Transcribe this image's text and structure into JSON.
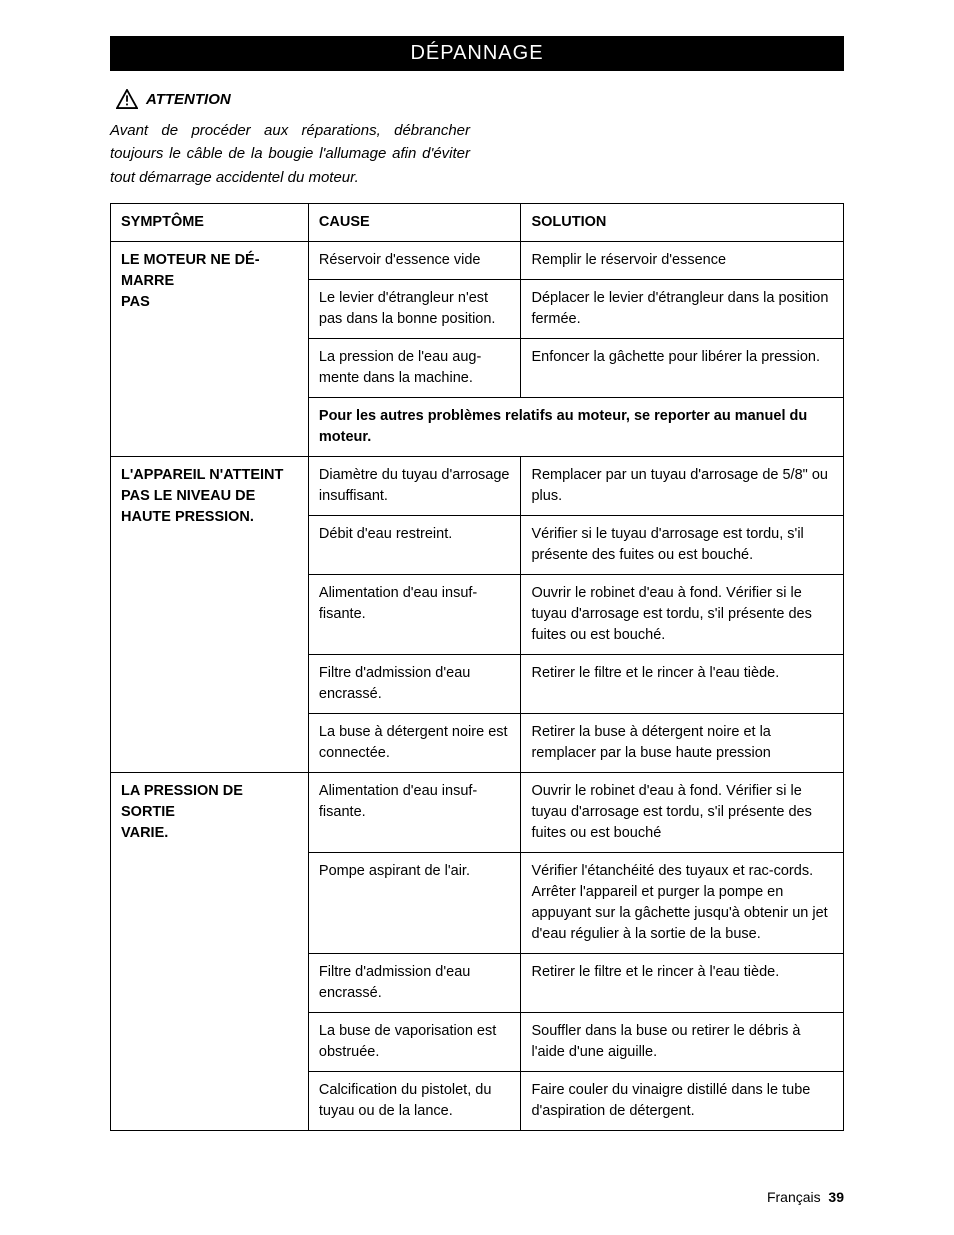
{
  "banner": {
    "title": "DÉPANNAGE"
  },
  "attention": {
    "label": "ATTENTION",
    "intro": "Avant de procéder aux réparations, débrancher toujours le câble de la bougie l'allumage afin d'éviter tout démarrage accidentel du moteur."
  },
  "table": {
    "headers": {
      "symptom": "SYMPTÔME",
      "cause": "CAUSE",
      "solution": "SOLUTION"
    },
    "groups": [
      {
        "symptom": "LE MOTEUR NE DÉ-MARRE\nPAS",
        "rows": [
          {
            "cause": "Réservoir d'essence vide",
            "solution": "Remplir le réservoir d'essence"
          },
          {
            "cause": "Le levier d'étrangleur n'est pas dans la bonne position.",
            "solution": "Déplacer le levier d'étrangleur dans la position fermée."
          },
          {
            "cause": "La pression de l'eau aug-mente dans la machine.",
            "solution": "Enfoncer la gâchette pour libérer la pression."
          }
        ],
        "note": "Pour les autres problèmes relatifs au moteur, se reporter au manuel du moteur."
      },
      {
        "symptom": "L'APPAREIL N'ATTEINT PAS LE NIVEAU DE HAUTE PRESSION.",
        "rows": [
          {
            "cause": "Diamètre du tuyau d'arrosage insuffisant.",
            "solution": "Remplacer par un tuyau d'arrosage de 5/8\" ou plus."
          },
          {
            "cause": "Débit d'eau restreint.",
            "solution": "Vérifier si le tuyau d'arrosage est tordu, s'il présente des fuites ou est bouché."
          },
          {
            "cause": "Alimentation d'eau insuf-fisante.",
            "solution": "Ouvrir le robinet d'eau à fond. Vérifier si le tuyau d'arrosage est tordu, s'il présente des fuites ou est bouché."
          },
          {
            "cause": "Filtre d'admission d'eau encrassé.",
            "solution": "Retirer le filtre et le rincer à l'eau tiède."
          },
          {
            "cause": "La buse à détergent noire est connectée.",
            "solution": "Retirer la buse à détergent noire et la remplacer par la buse haute pression"
          }
        ]
      },
      {
        "symptom": "LA PRESSION DE SORTIE\nVARIE.",
        "rows": [
          {
            "cause": "Alimentation d'eau insuf-fisante.",
            "solution": "Ouvrir le robinet d'eau à fond. Vérifier si le tuyau d'arrosage est tordu, s'il présente des fuites ou est bouché"
          },
          {
            "cause": "Pompe aspirant de l'air.",
            "solution": "Vérifier l'étanchéité des tuyaux et rac-cords. Arrêter l'appareil et purger la pompe en appuyant sur la gâchette jusqu'à obtenir un jet d'eau régulier à la sortie de la buse."
          },
          {
            "cause": "Filtre d'admission d'eau encrassé.",
            "solution": "Retirer le filtre et le rincer à l'eau tiède."
          },
          {
            "cause": "La buse de vaporisation est obstruée.",
            "solution": "Souffler dans la buse ou retirer le débris à l'aide d'une aiguille."
          },
          {
            "cause": "Calcification du pistolet, du tuyau ou de la lance.",
            "solution": "Faire couler du vinaigre distillé dans le tube d'aspiration de détergent."
          }
        ]
      }
    ]
  },
  "footer": {
    "lang": "Français",
    "page": "39"
  },
  "style": {
    "banner_bg": "#000000",
    "banner_fg": "#ffffff",
    "page_bg": "#ffffff",
    "text_color": "#000000",
    "border_color": "#000000",
    "body_font_size_pt": 11,
    "banner_font_size_pt": 15
  }
}
